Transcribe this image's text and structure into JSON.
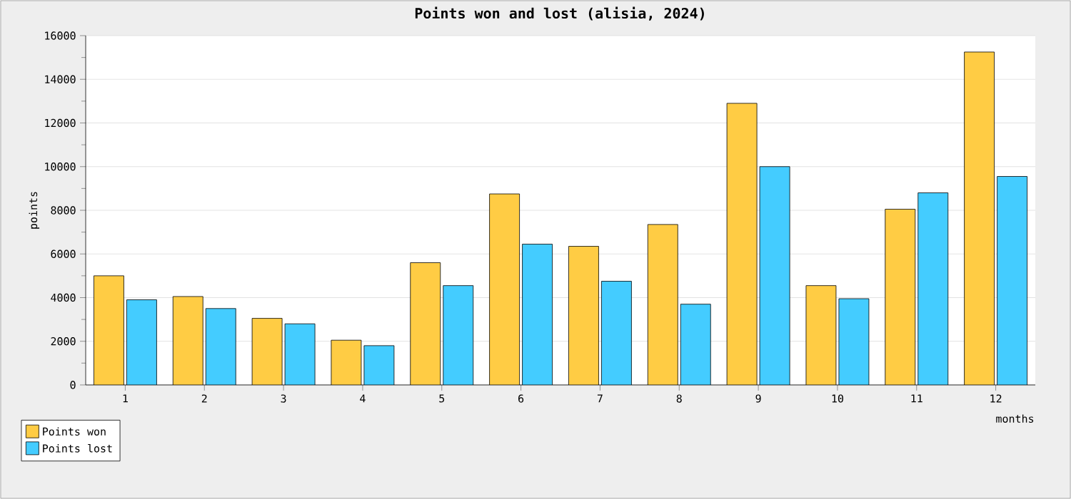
{
  "chart_data": {
    "type": "bar",
    "title": "Points won and lost (alisia, 2024)",
    "xlabel": "months",
    "ylabel": "points",
    "categories": [
      "1",
      "2",
      "3",
      "4",
      "5",
      "6",
      "7",
      "8",
      "9",
      "10",
      "11",
      "12"
    ],
    "series": [
      {
        "name": "Points won",
        "color": "#ffcc44",
        "values": [
          5000,
          4050,
          3050,
          2050,
          5600,
          8750,
          6350,
          7350,
          12900,
          4550,
          8050,
          15250
        ]
      },
      {
        "name": "Points lost",
        "color": "#44ccff",
        "values": [
          3900,
          3500,
          2800,
          1800,
          4550,
          6450,
          4750,
          3700,
          10000,
          3950,
          8800,
          9550
        ]
      }
    ],
    "ylim": [
      0,
      16000
    ],
    "yticks": [
      0,
      2000,
      4000,
      6000,
      8000,
      10000,
      12000,
      14000,
      16000
    ],
    "grid": "y",
    "legend": "bottom left"
  }
}
